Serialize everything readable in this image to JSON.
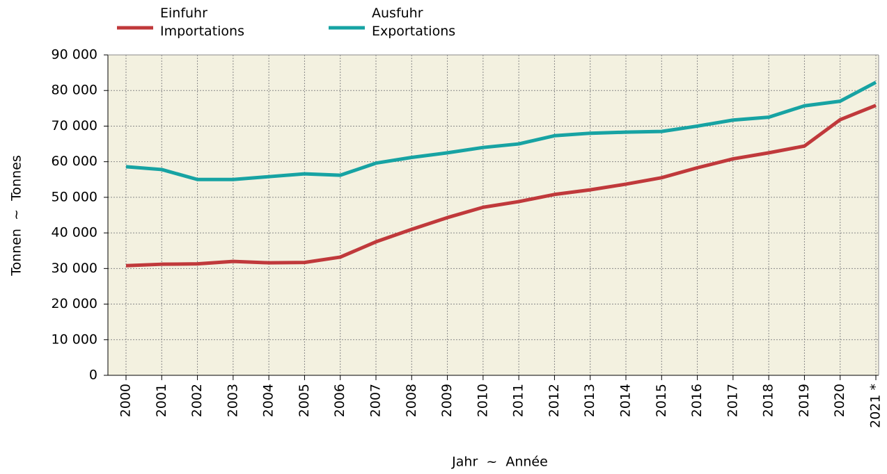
{
  "chart_data": {
    "type": "line",
    "categories": [
      "2000",
      "2001",
      "2002",
      "2003",
      "2004",
      "2005",
      "2006",
      "2007",
      "2008",
      "2009",
      "2010",
      "2011",
      "2012",
      "2013",
      "2014",
      "2015",
      "2016",
      "2017",
      "2018",
      "2019",
      "2020",
      "2021 *"
    ],
    "series": [
      {
        "name": "Einfuhr\nImportations",
        "color": "#c0393b",
        "values": [
          30800,
          31200,
          31300,
          32000,
          31600,
          31700,
          33200,
          37500,
          41000,
          44300,
          47200,
          48800,
          50800,
          52100,
          53700,
          55500,
          58300,
          60800,
          62500,
          64400,
          71800,
          75800
        ]
      },
      {
        "name": "Ausfuhr\nExportations",
        "color": "#17a3a3",
        "values": [
          58600,
          57800,
          55000,
          55000,
          55800,
          56600,
          56200,
          59600,
          61200,
          62500,
          64000,
          65000,
          67300,
          68000,
          68300,
          68500,
          70000,
          71700,
          72500,
          75700,
          77000,
          82300
        ]
      }
    ],
    "ylim": [
      0,
      90000
    ],
    "yticks": [
      0,
      {
        "value": 10000,
        "label": "10 000"
      },
      {
        "value": 20000,
        "label": "20 000"
      },
      {
        "value": 30000,
        "label": "30 000"
      },
      {
        "value": 40000,
        "label": "40 000"
      },
      {
        "value": 50000,
        "label": "50 000"
      },
      {
        "value": 60000,
        "label": "60 000"
      },
      {
        "value": 70000,
        "label": "70 000"
      },
      {
        "value": 80000,
        "label": "80 000"
      },
      {
        "value": 90000,
        "label": "90 000"
      }
    ],
    "y_label": "Tonnen  ~  Tonnes",
    "x_label": "Jahr  ~  Année",
    "grid": true,
    "legend": "top"
  }
}
